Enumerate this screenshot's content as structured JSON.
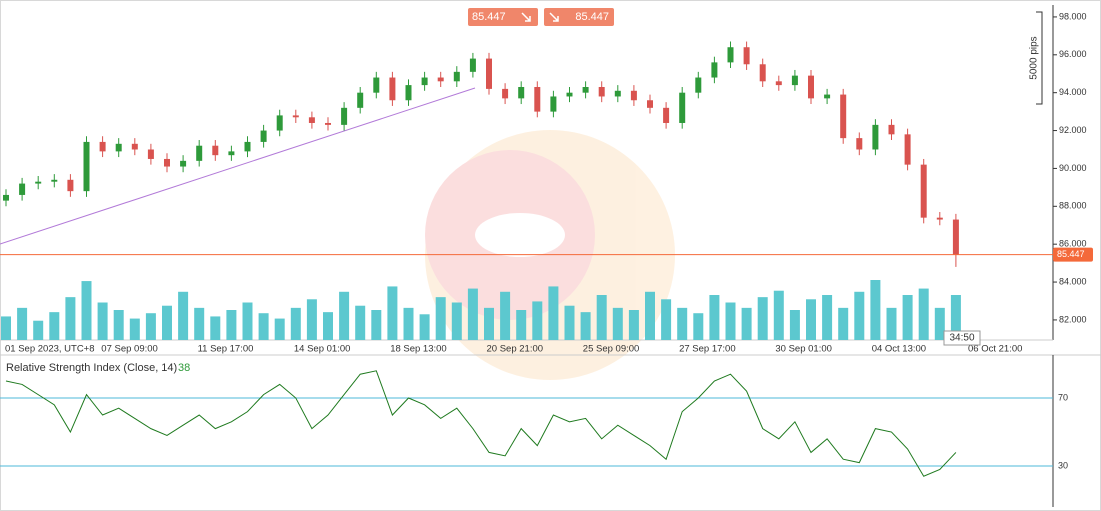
{
  "chart_data": [
    {
      "type": "candlestick",
      "sell_price": {
        "value": 85.447,
        "label": "85.447"
      },
      "buy_price": {
        "value": 85.447,
        "label": "85.447"
      },
      "current_price": {
        "value": 85.447,
        "label": "85.447"
      },
      "countdown": "34:50",
      "range_label": "5000 pips",
      "x_labels": [
        "01 Sep 2023, UTC+8",
        "07 Sep 09:00",
        "11 Sep 17:00",
        "14 Sep 01:00",
        "18 Sep 13:00",
        "20 Sep 21:00",
        "25 Sep 09:00",
        "27 Sep 17:00",
        "30 Sep 01:00",
        "04 Oct 13:00",
        "06 Oct 21:00"
      ],
      "ylim": [
        80.94,
        98.63
      ],
      "yticks": [
        {
          "value": 82,
          "label": "82.000"
        },
        {
          "value": 84,
          "label": "84.000"
        },
        {
          "value": 86,
          "label": "86.000"
        },
        {
          "value": 88,
          "label": "88.000"
        },
        {
          "value": 90,
          "label": "90.000"
        },
        {
          "value": 92,
          "label": "92.000"
        },
        {
          "value": 94,
          "label": "94.000"
        },
        {
          "value": 96,
          "label": "96.000"
        },
        {
          "value": 98,
          "label": "98.000"
        }
      ],
      "up_color": "#2e9a3a",
      "down_color": "#d9534f",
      "volume_color": "#5cc8cf",
      "price_line_color": "#f4693a",
      "open": [
        88.3,
        88.6,
        89.2,
        89.3,
        89.4,
        88.8,
        91.4,
        90.9,
        91.3,
        91.0,
        90.5,
        90.1,
        90.4,
        91.2,
        90.7,
        90.9,
        91.4,
        92.0,
        92.8,
        92.7,
        92.4,
        92.3,
        93.2,
        94.0,
        94.8,
        93.6,
        94.4,
        94.8,
        94.6,
        95.1,
        95.8,
        94.2,
        93.7,
        94.3,
        93.0,
        93.8,
        94.0,
        94.3,
        93.8,
        94.1,
        93.6,
        93.2,
        92.4,
        94.0,
        94.8,
        95.6,
        96.4,
        95.5,
        94.6,
        94.4,
        94.9,
        93.7,
        93.9,
        91.6,
        91.0,
        92.3,
        91.8,
        90.2,
        87.4,
        87.3
      ],
      "high": [
        88.9,
        89.5,
        89.6,
        89.7,
        89.7,
        91.7,
        91.7,
        91.6,
        91.6,
        91.3,
        90.8,
        90.7,
        91.5,
        91.5,
        91.2,
        91.7,
        92.3,
        93.1,
        93.1,
        93.0,
        92.7,
        93.5,
        94.3,
        95.1,
        95.1,
        94.7,
        95.1,
        95.1,
        95.4,
        96.1,
        96.1,
        94.5,
        94.6,
        94.6,
        94.1,
        94.3,
        94.6,
        94.6,
        94.4,
        94.4,
        93.9,
        93.5,
        94.3,
        95.1,
        95.9,
        96.7,
        96.7,
        95.8,
        94.9,
        95.2,
        95.2,
        94.2,
        94.2,
        91.9,
        92.6,
        92.6,
        92.1,
        90.5,
        87.7,
        87.6
      ],
      "low": [
        88.0,
        88.3,
        88.9,
        89.0,
        88.5,
        88.5,
        90.6,
        90.6,
        90.7,
        90.2,
        89.8,
        89.8,
        90.1,
        90.4,
        90.4,
        90.6,
        91.1,
        91.7,
        92.4,
        92.1,
        92.0,
        92.0,
        92.9,
        93.7,
        93.3,
        93.3,
        94.1,
        94.3,
        94.3,
        94.8,
        93.9,
        93.4,
        93.4,
        92.7,
        92.7,
        93.5,
        93.7,
        93.5,
        93.5,
        93.3,
        92.9,
        92.1,
        92.1,
        93.7,
        94.5,
        95.3,
        95.2,
        94.3,
        94.1,
        94.1,
        93.4,
        93.4,
        91.3,
        90.7,
        90.7,
        91.5,
        89.9,
        87.1,
        87.0,
        84.8
      ],
      "close": [
        88.6,
        89.2,
        89.3,
        89.4,
        88.8,
        91.4,
        90.9,
        91.3,
        91.0,
        90.5,
        90.1,
        90.4,
        91.2,
        90.7,
        90.9,
        91.4,
        92.0,
        92.8,
        92.7,
        92.4,
        92.3,
        93.2,
        94.0,
        94.8,
        93.6,
        94.4,
        94.8,
        94.6,
        95.1,
        95.8,
        94.2,
        93.7,
        94.3,
        93.0,
        93.8,
        94.0,
        94.3,
        93.8,
        94.1,
        93.6,
        93.2,
        92.4,
        94.0,
        94.8,
        95.6,
        96.4,
        95.5,
        94.6,
        94.4,
        94.9,
        93.7,
        93.9,
        91.6,
        91.0,
        92.3,
        91.8,
        90.2,
        87.4,
        87.3,
        85.447
      ],
      "volume": [
        22,
        30,
        18,
        26,
        40,
        55,
        35,
        28,
        20,
        25,
        32,
        45,
        30,
        22,
        28,
        35,
        25,
        20,
        30,
        38,
        26,
        45,
        32,
        28,
        50,
        30,
        24,
        40,
        35,
        48,
        30,
        45,
        28,
        36,
        50,
        32,
        26,
        42,
        30,
        28,
        45,
        38,
        30,
        25,
        42,
        35,
        30,
        40,
        46,
        28,
        38,
        42,
        30,
        45,
        56,
        30,
        42,
        48,
        30,
        42
      ]
    },
    {
      "type": "line",
      "title": "Relative Strength Index (Close, 14)",
      "current_value": 38,
      "color": "#1f7a1f",
      "level_color": "#4db8d8",
      "ylim": [
        5.9,
        95.3
      ],
      "yticks": [
        30,
        70
      ],
      "values": [
        80,
        78,
        72,
        66,
        50,
        72,
        60,
        64,
        58,
        52,
        48,
        54,
        60,
        52,
        56,
        62,
        72,
        78,
        70,
        52,
        60,
        72,
        84,
        86,
        60,
        70,
        66,
        58,
        64,
        52,
        38,
        36,
        52,
        42,
        60,
        56,
        58,
        46,
        54,
        48,
        42,
        34,
        62,
        70,
        80,
        84,
        74,
        52,
        46,
        56,
        38,
        46,
        34,
        32,
        52,
        50,
        40,
        24,
        28,
        38
      ]
    }
  ]
}
